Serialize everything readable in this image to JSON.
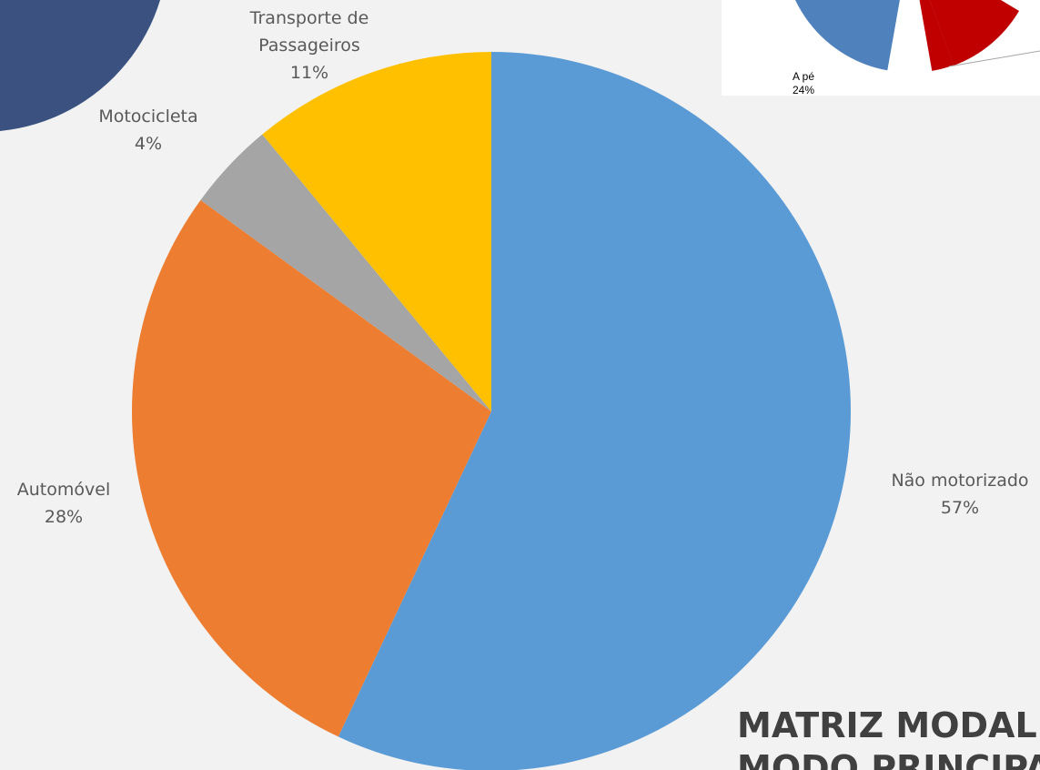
{
  "chart_data": [
    {
      "type": "pie",
      "title": "MATRIZ MODAL",
      "subtitle": "MODO PRINCIPAL N",
      "categories": [
        "Não motorizado",
        "Automóvel",
        "Motocicleta",
        "Transporte de Passageiros"
      ],
      "values": [
        57,
        28,
        4,
        11
      ],
      "value_labels": [
        "57%",
        "28%",
        "4%",
        "11%"
      ],
      "colors": [
        "#5b9bd5",
        "#ed7d31",
        "#a5a5a5",
        "#ffc000"
      ]
    },
    {
      "type": "pie",
      "categories": [
        "A pé"
      ],
      "values": [
        24
      ],
      "value_labels": [
        "24%"
      ],
      "colors": [
        "#4f81bd"
      ]
    }
  ]
}
